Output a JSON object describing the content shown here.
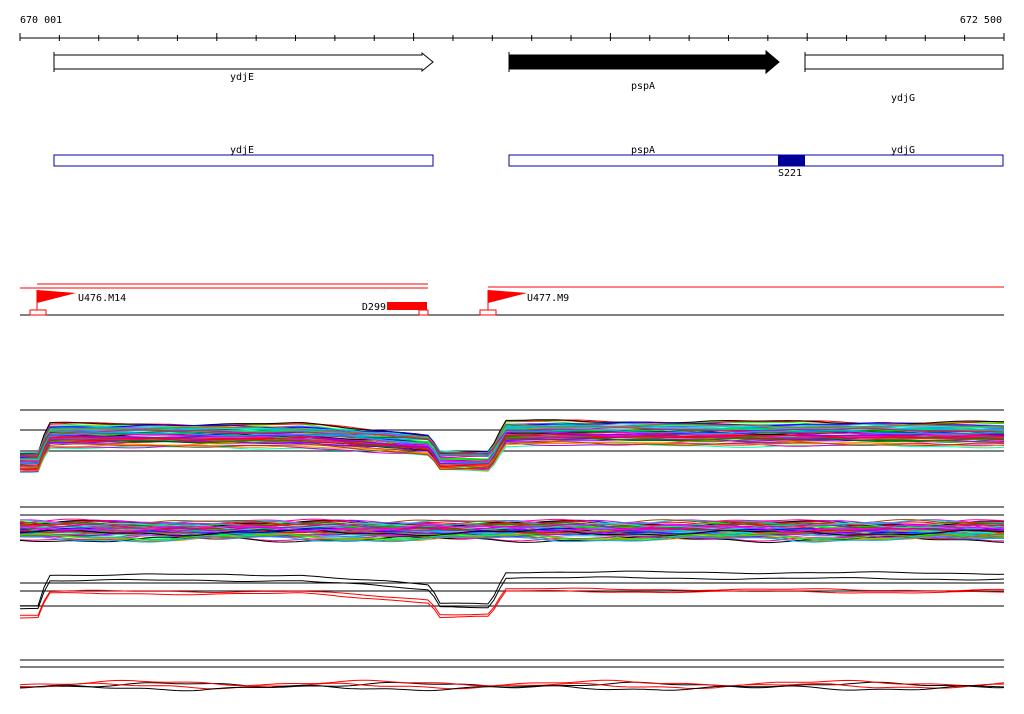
{
  "ruler": {
    "start_label": "670 001",
    "end_label": "672 500"
  },
  "genes": [
    {
      "name": "ydjE",
      "strand": "+",
      "filled": false
    },
    {
      "name": "pspA",
      "strand": "+",
      "filled": true
    },
    {
      "name": "ydjG",
      "strand": "+",
      "filled": false
    }
  ],
  "features": {
    "labels": [
      "ydjE",
      "pspA",
      "ydjG"
    ],
    "site_label": "S221",
    "colors": {
      "box_outline": "#0000aa",
      "site_fill": "#000099"
    }
  },
  "annotations": {
    "flag_1": "U476.M14",
    "flag_2": "U477.M9",
    "block_label": "D299",
    "color": "#ff0000"
  },
  "tracks": {
    "palette": [
      "#00ff00",
      "#ff00ff",
      "#0000ff",
      "#ff8800",
      "#00cccc",
      "#ff0000",
      "#8800ff",
      "#888800",
      "#008800",
      "#ff0088",
      "#00aaff",
      "#aa4400",
      "#6666ff",
      "#00ffaa",
      "#cc00cc",
      "#000000"
    ],
    "summary_colors": [
      "#000000",
      "#ff0000"
    ]
  }
}
